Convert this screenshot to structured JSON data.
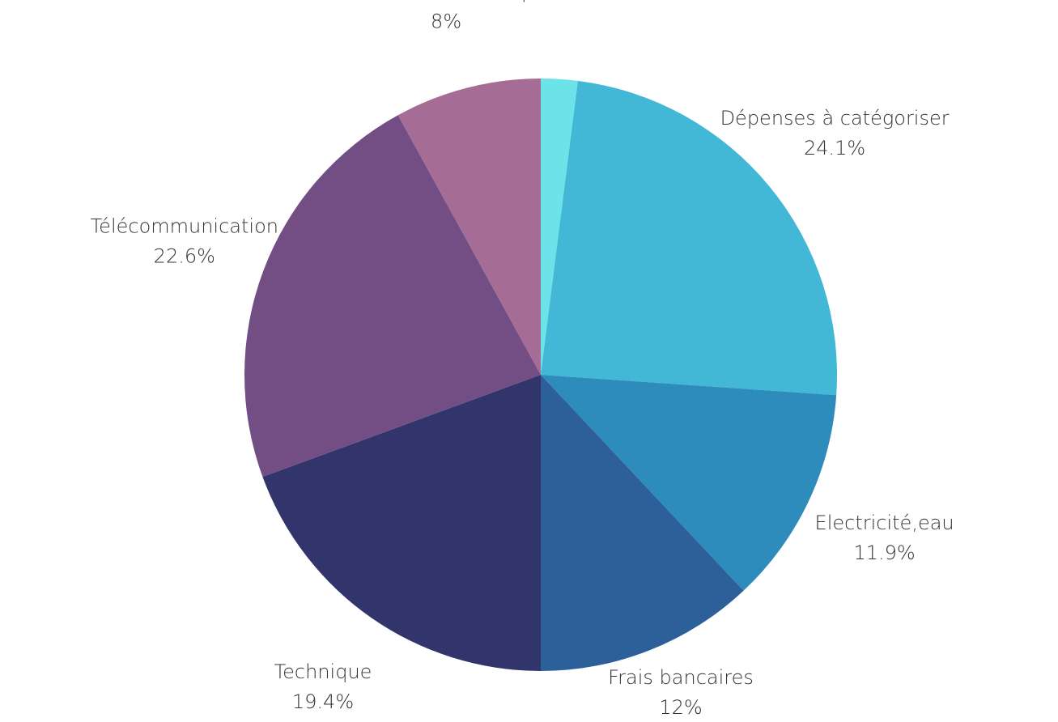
{
  "chart_data": {
    "type": "pie",
    "title": "",
    "categories": [
      "",
      "Dépenses à catégoriser",
      "Electricité,eau",
      "Frais bancaires",
      "Technique",
      "Télécommunication",
      "Matériels informatiques"
    ],
    "values": [
      2.0,
      24.1,
      11.9,
      12,
      19.4,
      22.6,
      8
    ],
    "labels": [
      "",
      "24.1%",
      "11.9%",
      "12%",
      "19.4%",
      "22.6%",
      "8%"
    ],
    "colors": [
      "#6be3e8",
      "#42b8d6",
      "#2d8cbc",
      "#2d5f98",
      "#31356c",
      "#724e85",
      "#a56d95"
    ],
    "start_angle_deg": 0,
    "direction": "clockwise",
    "legend": "none"
  }
}
